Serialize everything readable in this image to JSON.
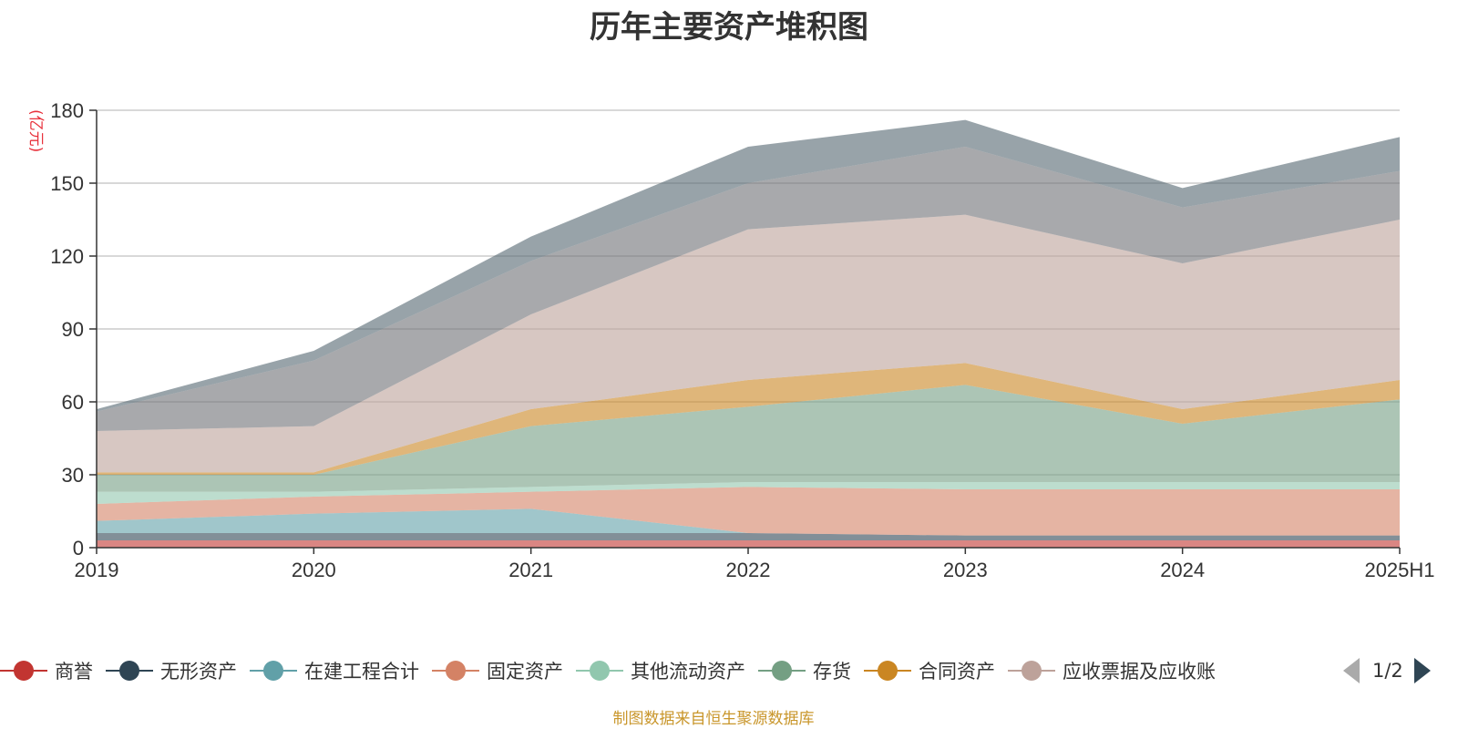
{
  "chart_data": {
    "type": "area",
    "stacked": true,
    "title": "历年主要资产堆积图",
    "unit": "(亿元)",
    "x": [
      "2019",
      "2020",
      "2021",
      "2022",
      "2023",
      "2024",
      "2025H1"
    ],
    "yticks": [
      "0",
      "30",
      "60",
      "90",
      "120",
      "150",
      "180"
    ],
    "ylim": [
      0,
      180
    ],
    "grid": true,
    "legend_position": "bottom",
    "series": [
      {
        "name": "商誉",
        "color": "#c23531",
        "values": [
          3,
          3,
          3,
          3,
          3,
          3,
          3
        ]
      },
      {
        "name": "无形资产",
        "color": "#2f4554",
        "values": [
          3,
          3,
          3,
          3,
          2,
          2,
          2
        ]
      },
      {
        "name": "在建工程合计",
        "color": "#61a0a8",
        "values": [
          5,
          8,
          10,
          0,
          0,
          0,
          0
        ]
      },
      {
        "name": "固定资产",
        "color": "#d48265",
        "values": [
          7,
          7,
          7,
          19,
          19,
          19,
          19
        ]
      },
      {
        "name": "其他流动资产",
        "color": "#91c7ae",
        "values": [
          5,
          2,
          2,
          2,
          3,
          3,
          3
        ]
      },
      {
        "name": "存货",
        "color": "#749f83",
        "values": [
          7,
          7,
          25,
          31,
          40,
          24,
          34
        ]
      },
      {
        "name": "合同资产",
        "color": "#ca8622",
        "values": [
          1,
          1,
          7,
          11,
          9,
          6,
          8
        ]
      },
      {
        "name": "应收票据及应收账款",
        "color": "#bda29a",
        "values": [
          17,
          19,
          39,
          62,
          61,
          60,
          66
        ]
      },
      {
        "name": "",
        "color": "#6e7074",
        "values": [
          8,
          27,
          22,
          19,
          28,
          23,
          20
        ]
      },
      {
        "name": "",
        "color": "#546570",
        "values": [
          1,
          4,
          10,
          15,
          11,
          8,
          14
        ]
      }
    ]
  },
  "legend": {
    "items": [
      {
        "label": "商誉",
        "color": "#c23531"
      },
      {
        "label": "无形资产",
        "color": "#2f4554"
      },
      {
        "label": "在建工程合计",
        "color": "#61a0a8"
      },
      {
        "label": "固定资产",
        "color": "#d48265"
      },
      {
        "label": "其他流动资产",
        "color": "#91c7ae"
      },
      {
        "label": "存货",
        "color": "#749f83"
      },
      {
        "label": "合同资产",
        "color": "#ca8622"
      },
      {
        "label": "应收票据及应收账",
        "color": "#bda29a"
      }
    ],
    "page_indicator": "1/2",
    "prev_icon": "triangle-left-icon",
    "next_icon": "triangle-right-icon"
  },
  "source_text": "制图数据来自恒生聚源数据库"
}
